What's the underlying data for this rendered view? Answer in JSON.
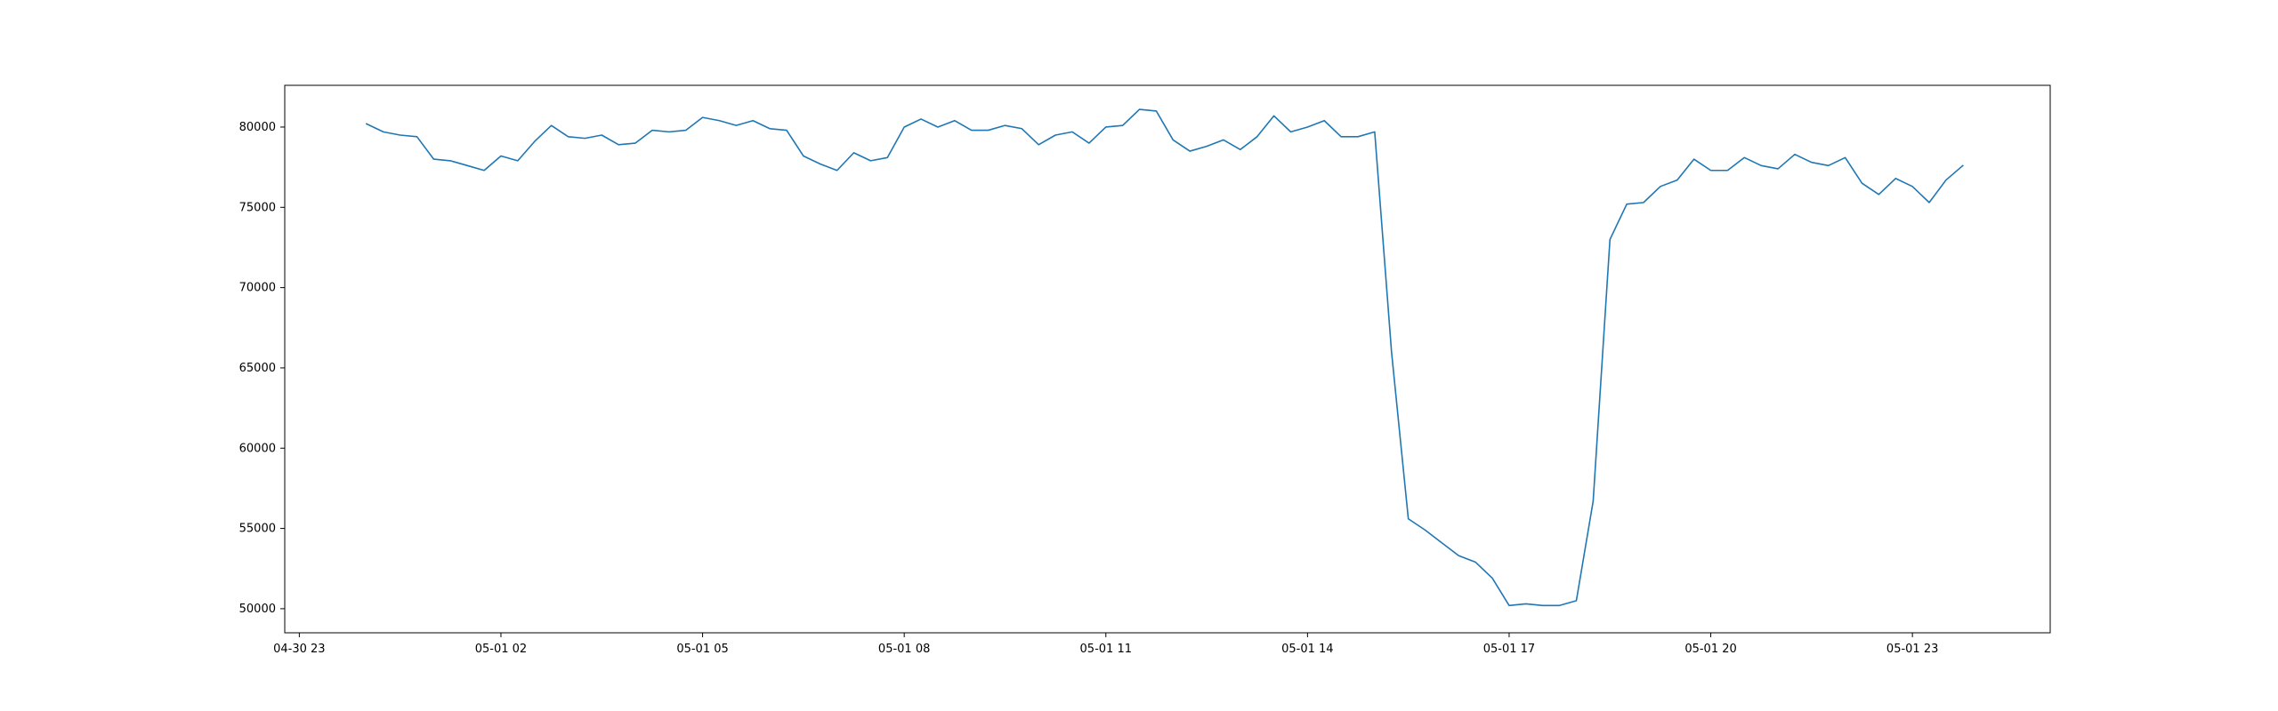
{
  "chart_data": {
    "type": "line",
    "title": "",
    "xlabel": "",
    "ylabel": "",
    "grid": false,
    "legend": "none",
    "ylim": [
      48500,
      82600
    ],
    "xlim": [
      "2023-04-30 22:47",
      "2023-05-02 01:03"
    ],
    "x_ticks": [
      {
        "t": "2023-04-30 23:00",
        "label": "04-30 23"
      },
      {
        "t": "2023-05-01 02:00",
        "label": "05-01 02"
      },
      {
        "t": "2023-05-01 05:00",
        "label": "05-01 05"
      },
      {
        "t": "2023-05-01 08:00",
        "label": "05-01 08"
      },
      {
        "t": "2023-05-01 11:00",
        "label": "05-01 11"
      },
      {
        "t": "2023-05-01 14:00",
        "label": "05-01 14"
      },
      {
        "t": "2023-05-01 17:00",
        "label": "05-01 17"
      },
      {
        "t": "2023-05-01 20:00",
        "label": "05-01 20"
      },
      {
        "t": "2023-05-01 23:00",
        "label": "05-01 23"
      }
    ],
    "y_ticks": [
      50000,
      55000,
      60000,
      65000,
      70000,
      75000,
      80000
    ],
    "series": [
      {
        "color": "#1f77b4",
        "start": "2023-05-01 00:00",
        "interval_minutes": 15,
        "values": [
          80200,
          79700,
          79500,
          79400,
          78000,
          77900,
          77600,
          77300,
          78200,
          77900,
          79100,
          80100,
          79400,
          79300,
          79500,
          78900,
          79000,
          79800,
          79700,
          79800,
          80600,
          80400,
          80100,
          80400,
          79900,
          79800,
          78200,
          77700,
          77300,
          78400,
          77900,
          78100,
          80000,
          80500,
          80000,
          80400,
          79800,
          79800,
          80100,
          79900,
          78900,
          79500,
          79700,
          79000,
          80000,
          80100,
          81100,
          81000,
          79200,
          78500,
          78800,
          79200,
          78600,
          79400,
          80700,
          79700,
          80000,
          80400,
          79400,
          79400,
          79700,
          66000,
          55600,
          54900,
          54100,
          53300,
          52900,
          51900,
          50200,
          50300,
          50200,
          50200,
          50500,
          56700,
          73000,
          75200,
          75300,
          76300,
          76700,
          78000,
          77300,
          77300,
          78100,
          77600,
          77400,
          78300,
          77800,
          77600,
          78100,
          76500,
          75800,
          76800,
          76300,
          75300,
          76700,
          77600
        ]
      }
    ]
  }
}
